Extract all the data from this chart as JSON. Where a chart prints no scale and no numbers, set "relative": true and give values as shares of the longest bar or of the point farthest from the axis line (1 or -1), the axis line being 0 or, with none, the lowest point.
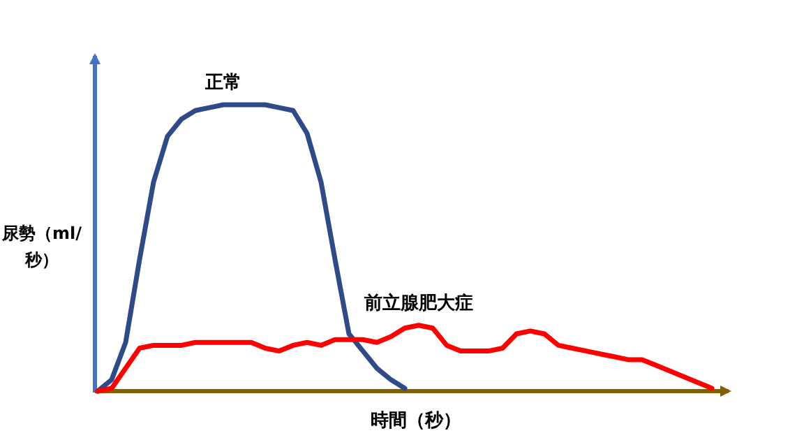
{
  "chart_data": {
    "type": "line",
    "relative": true,
    "xlabel": "時間（秒）",
    "ylabel": "尿勢（ml/秒）",
    "categories": [
      null,
      null,
      null,
      null,
      null,
      null,
      null,
      null,
      null,
      null,
      null,
      null,
      null,
      null,
      null,
      null,
      null,
      null,
      null,
      null,
      null,
      null,
      null,
      null,
      null,
      null,
      null,
      null,
      null,
      null,
      null,
      null,
      null,
      null,
      null,
      null,
      null,
      null,
      null,
      null,
      null,
      null,
      null,
      null,
      null
    ],
    "series": [
      {
        "name": "正常",
        "color": "#2e4a88",
        "values": [
          0,
          0.04,
          0.17,
          0.46,
          0.73,
          0.89,
          0.95,
          0.98,
          0.99,
          1,
          1,
          1,
          1,
          0.99,
          0.98,
          0.9,
          0.73,
          0.46,
          0.2,
          0.14,
          0.08,
          0.04,
          0.01,
          null,
          null,
          null,
          null,
          null,
          null,
          null,
          null,
          null,
          null,
          null,
          null,
          null,
          null,
          null,
          null,
          null,
          null,
          null,
          null,
          null,
          null
        ]
      },
      {
        "name": "前立腺肥大症",
        "color": "#ff0000",
        "values": [
          0,
          0.01,
          0.08,
          0.15,
          0.16,
          0.16,
          0.16,
          0.17,
          0.17,
          0.17,
          0.17,
          0.17,
          0.15,
          0.14,
          0.16,
          0.17,
          0.16,
          0.18,
          0.18,
          0.18,
          0.17,
          0.19,
          0.22,
          0.23,
          0.22,
          0.16,
          0.14,
          0.14,
          0.14,
          0.15,
          0.2,
          0.21,
          0.2,
          0.16,
          0.15,
          0.14,
          0.13,
          0.12,
          0.11,
          0.11,
          0.09,
          0.07,
          0.05,
          0.03,
          0.01
        ]
      }
    ]
  }
}
